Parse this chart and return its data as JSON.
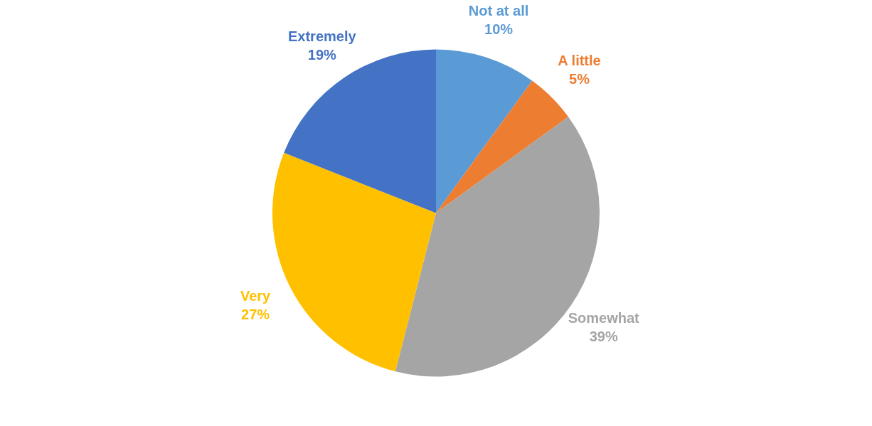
{
  "chart_data": {
    "type": "pie",
    "categories": [
      "Not at all",
      "A little",
      "Somewhat",
      "Very",
      "Extremely"
    ],
    "values": [
      10,
      5,
      39,
      27,
      19
    ],
    "value_labels": [
      "10%",
      "5%",
      "39%",
      "27%",
      "19%"
    ],
    "colors": [
      "#5b9bd5",
      "#ed7d31",
      "#a5a5a5",
      "#ffc000",
      "#4472c4"
    ]
  }
}
